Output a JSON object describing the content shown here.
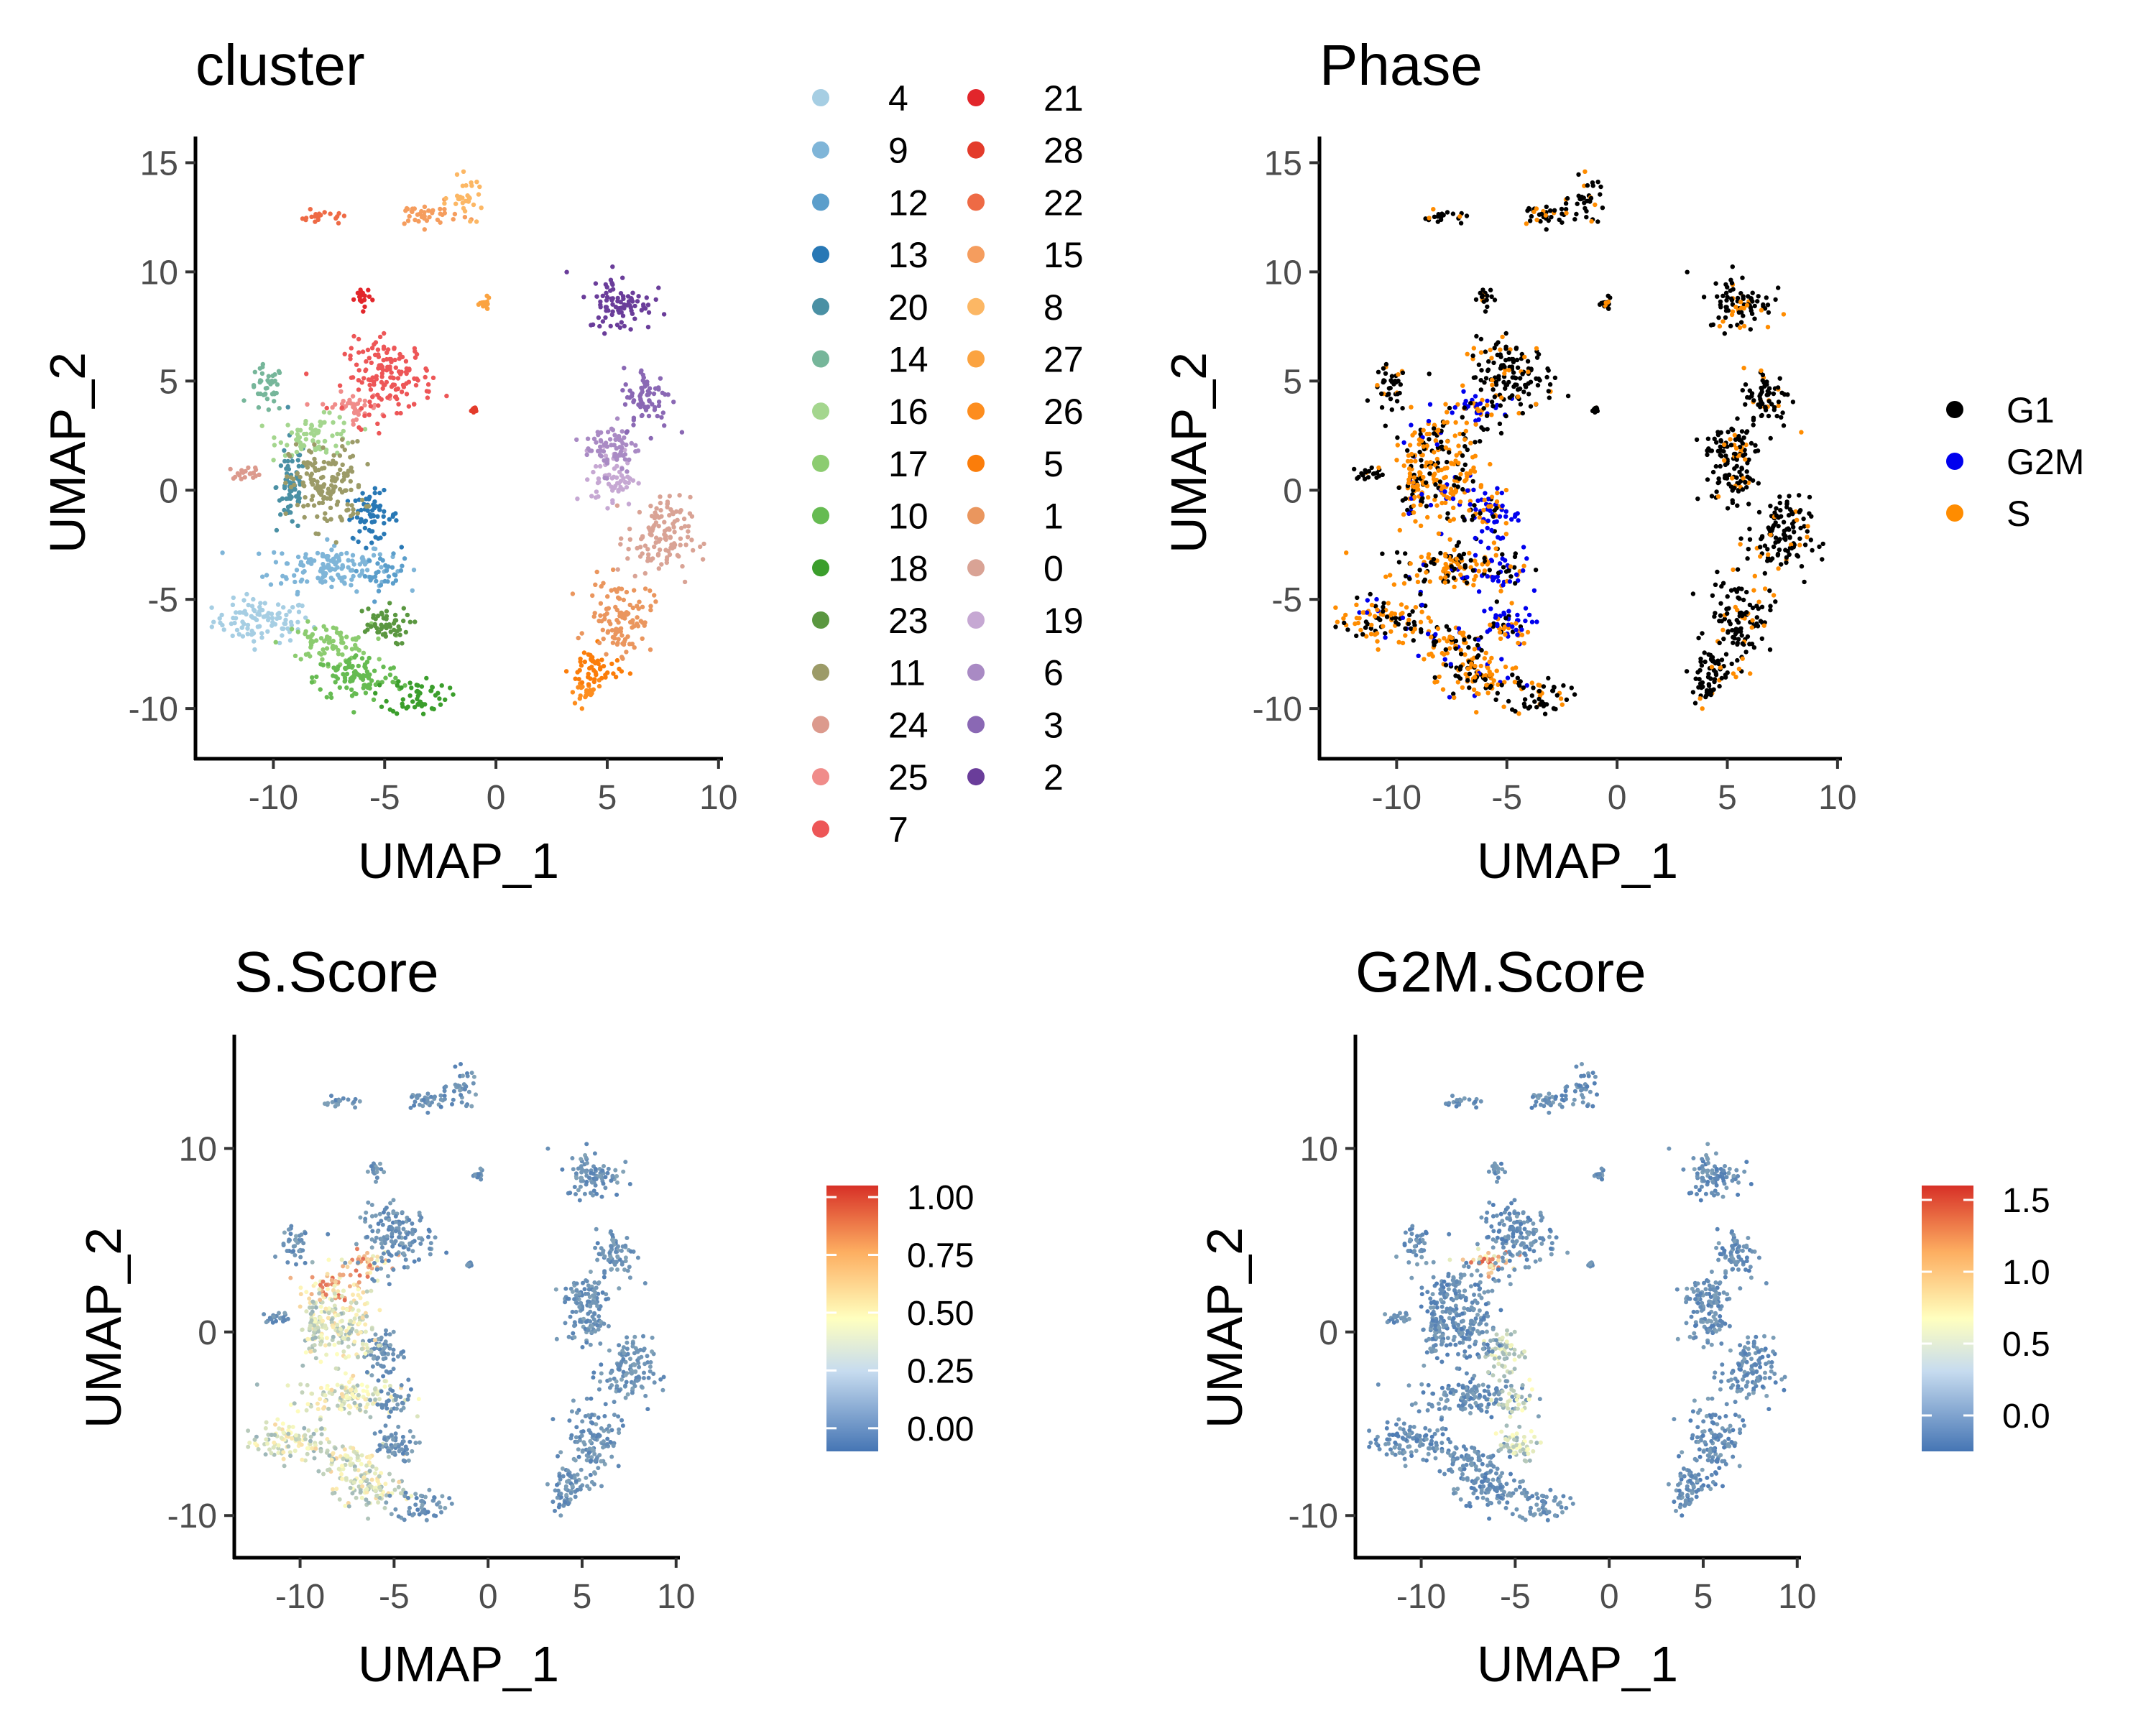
{
  "chart_data": [
    {
      "type": "scatter",
      "title": "cluster",
      "xlabel": "UMAP_1",
      "ylabel": "UMAP_2",
      "xlim": [
        -13.5,
        10.2
      ],
      "ylim": [
        -12.3,
        16.2
      ],
      "xticks": [
        -10,
        -5,
        0,
        5,
        10
      ],
      "yticks": [
        -10,
        -5,
        0,
        5,
        10,
        15
      ],
      "legend": {
        "title": "",
        "placement": "right",
        "columns": 2,
        "entries": [
          {
            "label": "4",
            "color": "#a6cee3"
          },
          {
            "label": "9",
            "color": "#7fb5d8"
          },
          {
            "label": "12",
            "color": "#5b9ecb"
          },
          {
            "label": "13",
            "color": "#2878b5"
          },
          {
            "label": "20",
            "color": "#4a90a4"
          },
          {
            "label": "14",
            "color": "#76b69a"
          },
          {
            "label": "16",
            "color": "#a4d68e"
          },
          {
            "label": "17",
            "color": "#8ccc70"
          },
          {
            "label": "10",
            "color": "#66bb52"
          },
          {
            "label": "18",
            "color": "#3b9e2c"
          },
          {
            "label": "23",
            "color": "#5a9740"
          },
          {
            "label": "11",
            "color": "#9c9b68"
          },
          {
            "label": "24",
            "color": "#dc9a8d"
          },
          {
            "label": "25",
            "color": "#f08c8a"
          },
          {
            "label": "7",
            "color": "#ed5657"
          },
          {
            "label": "21",
            "color": "#e2262b"
          },
          {
            "label": "28",
            "color": "#e33b2b"
          },
          {
            "label": "22",
            "color": "#ee6a45"
          },
          {
            "label": "15",
            "color": "#f59d5e"
          },
          {
            "label": "8",
            "color": "#fcb764"
          },
          {
            "label": "27",
            "color": "#fba340"
          },
          {
            "label": "26",
            "color": "#fd8d1e"
          },
          {
            "label": "5",
            "color": "#fb7d0a"
          },
          {
            "label": "1",
            "color": "#ea965e"
          },
          {
            "label": "0",
            "color": "#d9a395"
          },
          {
            "label": "19",
            "color": "#c6a8d3"
          },
          {
            "label": "6",
            "color": "#a98ac4"
          },
          {
            "label": "3",
            "color": "#8a68b4"
          },
          {
            "label": "2",
            "color": "#6a3d9a"
          }
        ]
      },
      "regions": [
        {
          "label": "4",
          "color": "#a6cee3",
          "x": -10.5,
          "y": -6.0,
          "rx": 2.0,
          "ry": 0.9
        },
        {
          "label": "9",
          "color": "#7fb5d8",
          "x": -7.5,
          "y": -3.5,
          "rx": 2.5,
          "ry": 1.0
        },
        {
          "label": "12",
          "color": "#5b9ecb",
          "x": -5.0,
          "y": -3.8,
          "rx": 0.8,
          "ry": 0.7
        },
        {
          "label": "13",
          "color": "#2878b5",
          "x": -5.6,
          "y": -1.2,
          "rx": 1.1,
          "ry": 1.0
        },
        {
          "label": "20",
          "color": "#4a90a4",
          "x": -9.2,
          "y": 0.2,
          "rx": 0.6,
          "ry": 2.0
        },
        {
          "label": "14",
          "color": "#76b69a",
          "x": -10.3,
          "y": 4.6,
          "rx": 0.7,
          "ry": 1.0
        },
        {
          "label": "16",
          "color": "#a4d68e",
          "x": -8.0,
          "y": 2.5,
          "rx": 1.6,
          "ry": 0.8
        },
        {
          "label": "17",
          "color": "#8ccc70",
          "x": -7.6,
          "y": -7.0,
          "rx": 1.8,
          "ry": 0.8
        },
        {
          "label": "10",
          "color": "#66bb52",
          "x": -6.2,
          "y": -8.6,
          "rx": 1.8,
          "ry": 1.0
        },
        {
          "label": "18",
          "color": "#3b9e2c",
          "x": -3.5,
          "y": -9.4,
          "rx": 1.2,
          "ry": 0.8
        },
        {
          "label": "23",
          "color": "#5a9740",
          "x": -5.2,
          "y": -6.2,
          "rx": 1.2,
          "ry": 0.8
        },
        {
          "label": "11",
          "color": "#9c9b68",
          "x": -7.6,
          "y": 0.2,
          "rx": 1.5,
          "ry": 1.8
        },
        {
          "label": "24",
          "color": "#dc9a8d",
          "x": -11.2,
          "y": 0.8,
          "rx": 0.7,
          "ry": 0.25
        },
        {
          "label": "25",
          "color": "#f08c8a",
          "x": -6.5,
          "y": 3.8,
          "rx": 1.2,
          "ry": 0.6
        },
        {
          "label": "7",
          "color": "#ed5657",
          "x": -4.8,
          "y": 5.2,
          "rx": 1.8,
          "ry": 1.5
        },
        {
          "label": "21",
          "color": "#e2262b",
          "x": -6.0,
          "y": 8.8,
          "rx": 0.3,
          "ry": 0.5
        },
        {
          "label": "28",
          "color": "#e33b2b",
          "x": -1.0,
          "y": 3.7,
          "rx": 0.1,
          "ry": 0.1
        },
        {
          "label": "22",
          "color": "#ee6a45",
          "x": -7.8,
          "y": 12.5,
          "rx": 0.9,
          "ry": 0.3
        },
        {
          "label": "15",
          "color": "#f59d5e",
          "x": -3.2,
          "y": 12.6,
          "rx": 1.4,
          "ry": 0.5
        },
        {
          "label": "8",
          "color": "#fcb764",
          "x": -1.3,
          "y": 13.4,
          "rx": 0.7,
          "ry": 0.8
        },
        {
          "label": "27",
          "color": "#fba340",
          "x": -0.5,
          "y": 8.5,
          "rx": 0.2,
          "ry": 0.25
        },
        {
          "label": "26",
          "color": "#fd8d1e",
          "x": 4.0,
          "y": -9.3,
          "rx": 0.7,
          "ry": 0.6
        },
        {
          "label": "5",
          "color": "#fb7d0a",
          "x": 4.4,
          "y": -8.2,
          "rx": 1.0,
          "ry": 0.9
        },
        {
          "label": "1",
          "color": "#ea965e",
          "x": 5.6,
          "y": -5.8,
          "rx": 1.3,
          "ry": 1.5
        },
        {
          "label": "0",
          "color": "#d9a395",
          "x": 7.3,
          "y": -2.2,
          "rx": 1.3,
          "ry": 1.7
        },
        {
          "label": "19",
          "color": "#c6a8d3",
          "x": 5.3,
          "y": 0.6,
          "rx": 0.9,
          "ry": 1.2
        },
        {
          "label": "6",
          "color": "#a98ac4",
          "x": 5.2,
          "y": 2.0,
          "rx": 1.1,
          "ry": 1.1
        },
        {
          "label": "3",
          "color": "#8a68b4",
          "x": 6.8,
          "y": 4.2,
          "rx": 1.0,
          "ry": 1.3
        },
        {
          "label": "2",
          "color": "#6a3d9a",
          "x": 5.6,
          "y": 8.6,
          "rx": 1.3,
          "ry": 1.2
        }
      ]
    },
    {
      "type": "scatter",
      "title": "Phase",
      "xlabel": "UMAP_1",
      "ylabel": "UMAP_2",
      "xlim": [
        -13.5,
        10.2
      ],
      "ylim": [
        -12.3,
        16.2
      ],
      "xticks": [
        -10,
        -5,
        0,
        5,
        10
      ],
      "yticks": [
        -10,
        -5,
        0,
        5,
        10,
        15
      ],
      "legend": {
        "placement": "right",
        "entries": [
          {
            "label": "G1",
            "color": "#000000"
          },
          {
            "label": "G2M",
            "color": "#0000ee"
          },
          {
            "label": "S",
            "color": "#ff8c00"
          }
        ]
      }
    },
    {
      "type": "scatter",
      "title": "S.Score",
      "xlabel": "UMAP_1",
      "ylabel": "UMAP_2",
      "xlim": [
        -13.5,
        10.2
      ],
      "ylim": [
        -12.3,
        16.2
      ],
      "xticks": [
        -10,
        -5,
        0,
        5,
        10
      ],
      "yticks": [
        -10,
        0,
        10
      ],
      "colorbar": {
        "min": -0.1,
        "max": 1.05,
        "ticks": [
          {
            "value": 0.0,
            "label": "0.00"
          },
          {
            "value": 0.25,
            "label": "0.25"
          },
          {
            "value": 0.5,
            "label": "0.50"
          },
          {
            "value": 0.75,
            "label": "0.75"
          },
          {
            "value": 1.0,
            "label": "1.00"
          }
        ],
        "colors": [
          "#4575b4",
          "#ffffbf",
          "#d73027"
        ]
      }
    },
    {
      "type": "scatter",
      "title": "G2M.Score",
      "xlabel": "UMAP_1",
      "ylabel": "UMAP_2",
      "xlim": [
        -13.5,
        10.2
      ],
      "ylim": [
        -12.3,
        16.2
      ],
      "xticks": [
        -10,
        -5,
        0,
        5,
        10
      ],
      "yticks": [
        -10,
        0,
        10
      ],
      "colorbar": {
        "min": -0.25,
        "max": 1.6,
        "ticks": [
          {
            "value": 0.0,
            "label": "0.0"
          },
          {
            "value": 0.5,
            "label": "0.5"
          },
          {
            "value": 1.0,
            "label": "1.0"
          },
          {
            "value": 1.5,
            "label": "1.5"
          }
        ],
        "colors": [
          "#4575b4",
          "#ffffbf",
          "#d73027"
        ]
      }
    }
  ]
}
